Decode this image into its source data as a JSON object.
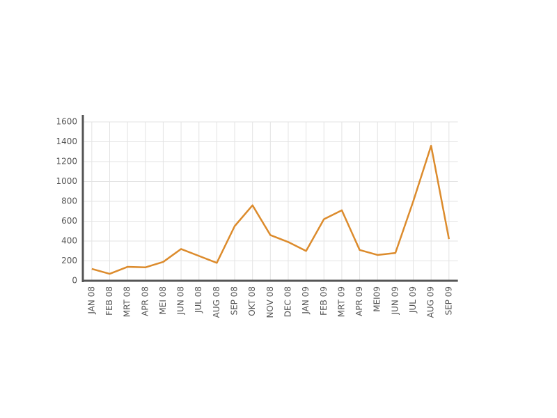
{
  "chart_data": {
    "type": "line",
    "categories": [
      "JAN 08",
      "FEB 08",
      "MRT 08",
      "APR 08",
      "MEI 08",
      "JUN 08",
      "JUL 08",
      "AUG 08",
      "SEP 08",
      "OKT 08",
      "NOV 08",
      "DEC 08",
      "JAN 09",
      "FEB 09",
      "MRT 09",
      "APR 09",
      "MEI09",
      "JUN 09",
      "JUL 09",
      "AUG 09",
      "SEP 09"
    ],
    "values": [
      120,
      70,
      140,
      135,
      190,
      320,
      250,
      180,
      550,
      760,
      460,
      390,
      300,
      620,
      710,
      310,
      260,
      280,
      800,
      1360,
      420
    ],
    "color": "#dc8b2c",
    "ylim": [
      0,
      1600
    ],
    "yticks": [
      0,
      200,
      400,
      600,
      800,
      1000,
      1200,
      1400,
      1600
    ],
    "grid": true
  }
}
